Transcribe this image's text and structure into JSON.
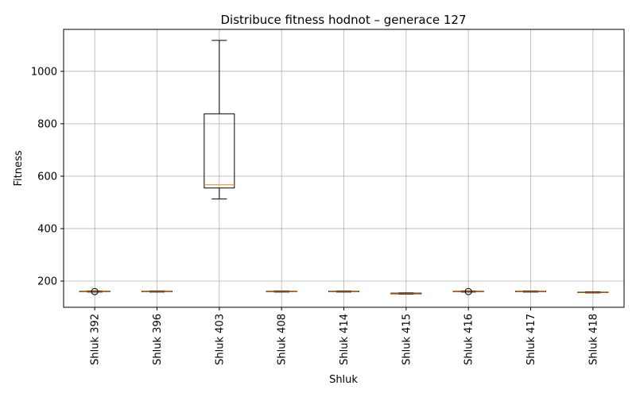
{
  "chart_data": {
    "type": "box",
    "title": "Distribuce fitness hodnot – generace 127",
    "xlabel": "Shluk",
    "ylabel": "Fitness",
    "ylim": [
      100,
      1160
    ],
    "yticks": [
      200,
      400,
      600,
      800,
      1000
    ],
    "grid": true,
    "categories": [
      "Shluk 392",
      "Shluk 396",
      "Shluk 403",
      "Shluk 408",
      "Shluk 414",
      "Shluk 415",
      "Shluk 416",
      "Shluk 417",
      "Shluk 418"
    ],
    "boxes": [
      {
        "whislo": 158,
        "q1": 159,
        "med": 160,
        "q3": 161,
        "whishi": 162,
        "fliers": [
          160
        ]
      },
      {
        "whislo": 158,
        "q1": 159,
        "med": 160,
        "q3": 161,
        "whishi": 162,
        "fliers": []
      },
      {
        "whislo": 513,
        "q1": 555,
        "med": 567,
        "q3": 838,
        "whishi": 1118,
        "fliers": []
      },
      {
        "whislo": 158,
        "q1": 159,
        "med": 160,
        "q3": 161,
        "whishi": 162,
        "fliers": []
      },
      {
        "whislo": 158,
        "q1": 159,
        "med": 160,
        "q3": 161,
        "whishi": 162,
        "fliers": []
      },
      {
        "whislo": 150,
        "q1": 151,
        "med": 152,
        "q3": 154,
        "whishi": 155,
        "fliers": []
      },
      {
        "whislo": 158,
        "q1": 159,
        "med": 160,
        "q3": 161,
        "whishi": 162,
        "fliers": [
          160
        ]
      },
      {
        "whislo": 158,
        "q1": 159,
        "med": 160,
        "q3": 161,
        "whishi": 162,
        "fliers": []
      },
      {
        "whislo": 155,
        "q1": 156,
        "med": 157,
        "q3": 158,
        "whishi": 159,
        "fliers": []
      }
    ],
    "colors": {
      "box": "#000000",
      "median": "#ff7f0e",
      "grid": "#b0b0b0"
    }
  }
}
